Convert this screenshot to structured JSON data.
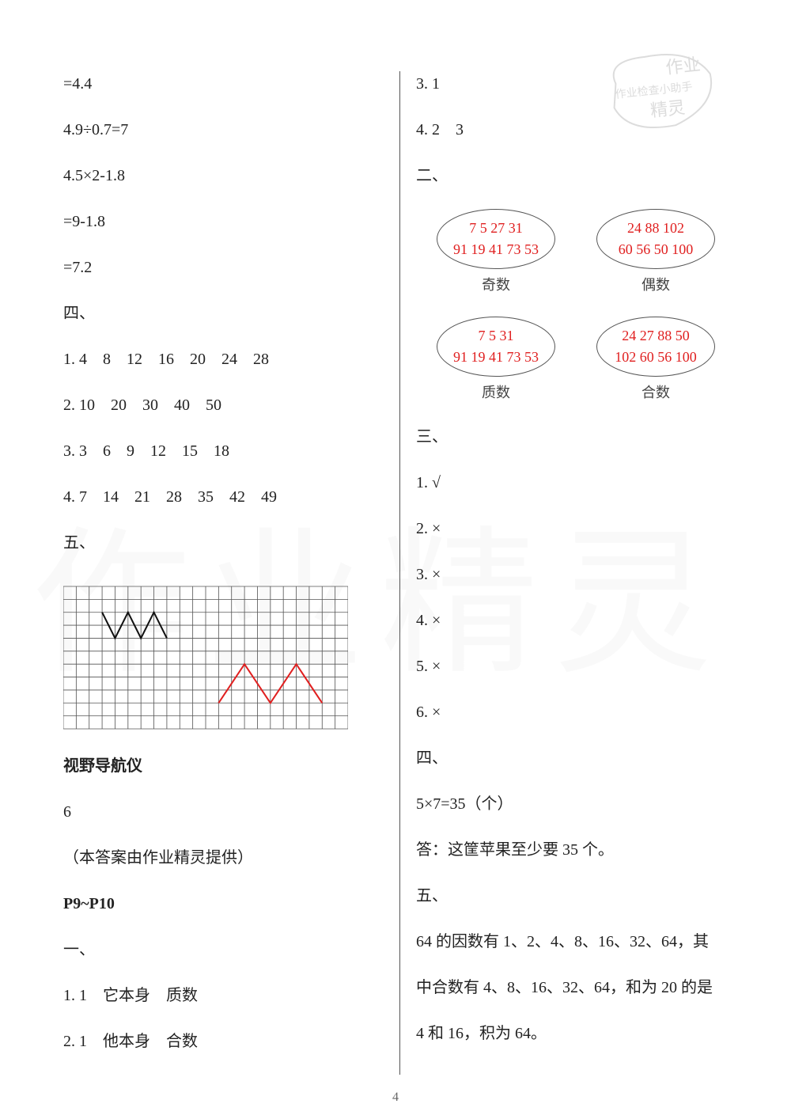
{
  "page_number": "4",
  "stamp": {
    "top": "作业",
    "mid": "作业检查小助手",
    "bot": "精灵"
  },
  "left": {
    "math1": "=4.4",
    "math2": "4.9÷0.7=7",
    "math3": "4.5×2-1.8",
    "math4": "=9-1.8",
    "math5": "=7.2",
    "sec4": "四、",
    "s4_1": "1. 4　8　12　16　20　24　28",
    "s4_2": "2. 10　20　30　40　50",
    "s4_3": "3. 3　6　9　12　15　18",
    "s4_4": "4. 7　14　21　28　35　42　49",
    "sec5": "五、",
    "nav_title": "视野导航仪",
    "nav_val": "6",
    "credit": "（本答案由作业精灵提供）",
    "pageref": "P9~P10",
    "sec1": "一、",
    "a1_1": "1. 1　它本身　质数",
    "a1_2": "2. 1　他本身　合数"
  },
  "right": {
    "a1_3": "3. 1",
    "a1_4": "4. 2　3",
    "sec2": "二、",
    "ovals": {
      "odd": {
        "line1": "7  5  27  31",
        "line2": "91  19  41  73  53",
        "label": "奇数"
      },
      "even": {
        "line1": "24  88  102",
        "line2": "60  56  50  100",
        "label": "偶数"
      },
      "prime": {
        "line1": "7  5  31",
        "line2": "91  19  41  73  53",
        "label": "质数"
      },
      "composite": {
        "line1": "24  27  88  50",
        "line2": "102  60  56  100",
        "label": "合数"
      }
    },
    "sec3": "三、",
    "tf1": "1. √",
    "tf2": "2. ×",
    "tf3": "3. ×",
    "tf4": "4. ×",
    "tf5": "5. ×",
    "tf6": "6. ×",
    "sec4": "四、",
    "calc4": "5×7=35（个）",
    "ans4": "答：这筐苹果至少要 35 个。",
    "sec5": "五、",
    "ans5_1": "64 的因数有 1、2、4、8、16、32、64，其",
    "ans5_2": "中合数有 4、8、16、32、64，和为 20 的是",
    "ans5_3": "4 和 16，积为 64。"
  },
  "grid": {
    "cols": 22,
    "rows": 11,
    "cell": 16,
    "grid_color": "#555555",
    "shape_black_color": "#111111",
    "shape_red_color": "#e02020",
    "black_points": [
      [
        3,
        2
      ],
      [
        4,
        4
      ],
      [
        5,
        2
      ],
      [
        6,
        4
      ],
      [
        7,
        2
      ],
      [
        8,
        4
      ]
    ],
    "red_points": [
      [
        12,
        9
      ],
      [
        14,
        6
      ],
      [
        16,
        9
      ],
      [
        18,
        6
      ],
      [
        20,
        9
      ]
    ]
  },
  "colors": {
    "text": "#222222",
    "red": "#e02020",
    "watermark": "#eeeeee"
  }
}
